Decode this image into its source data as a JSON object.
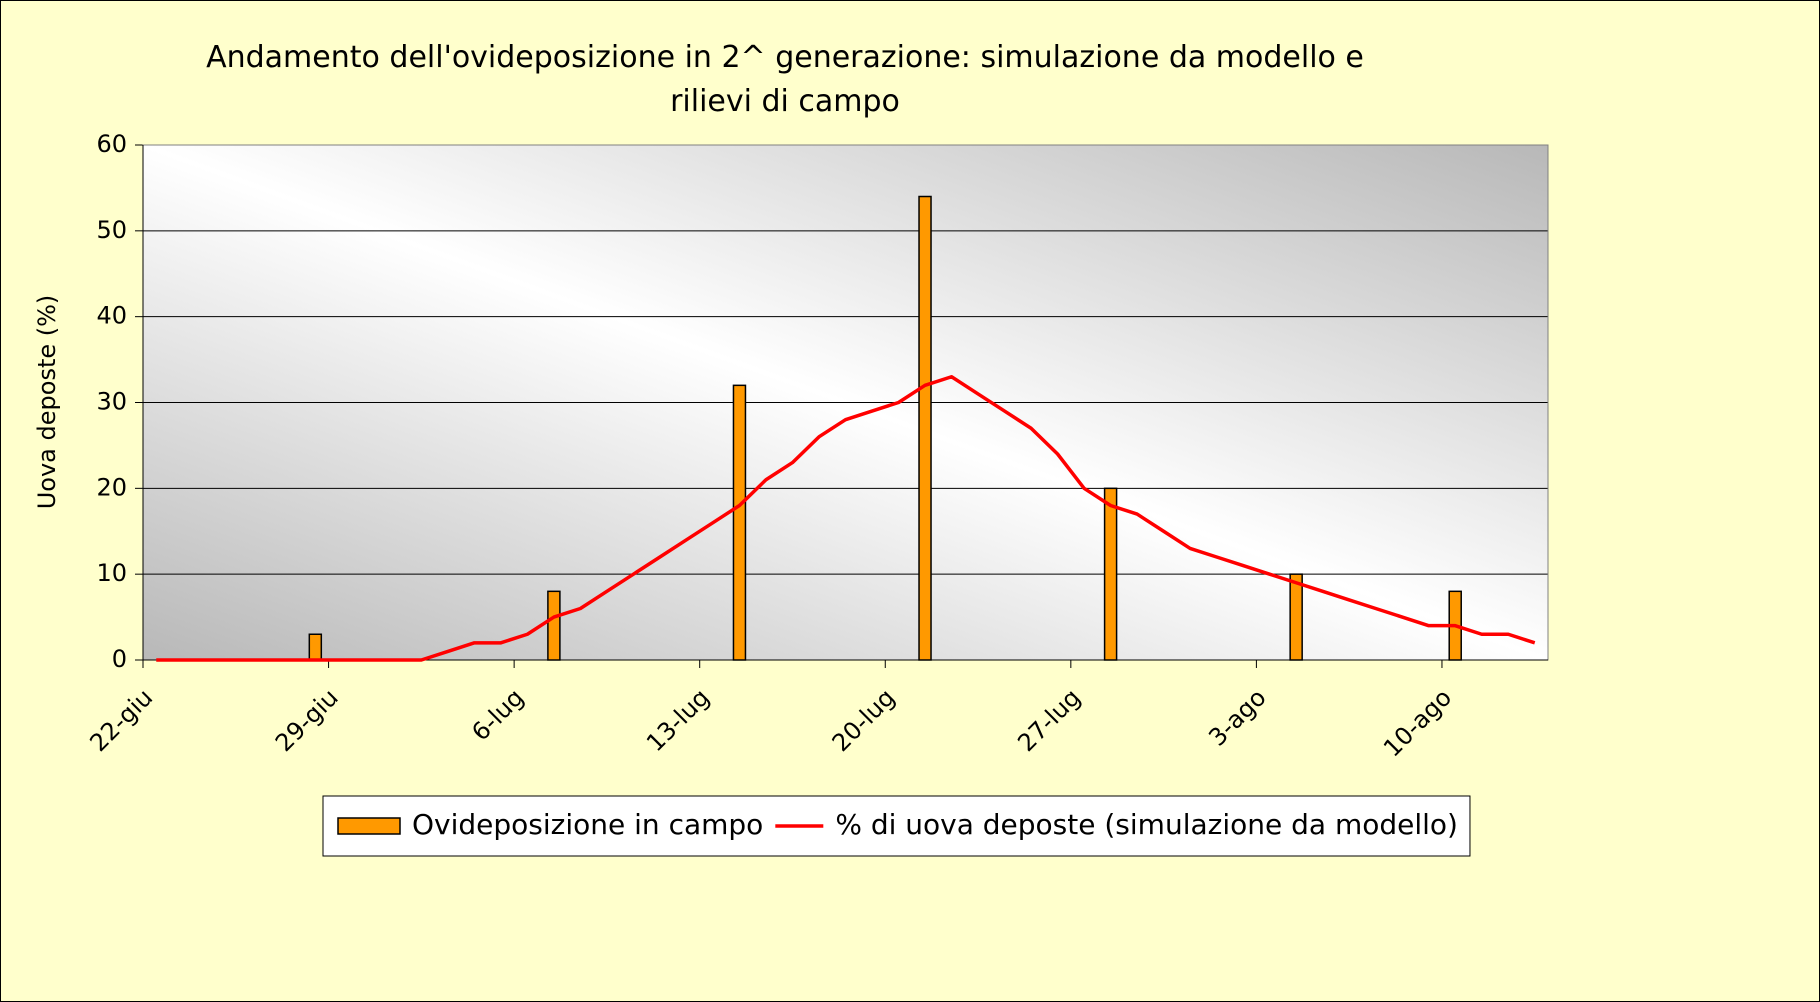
{
  "chart_data": {
    "type": "bar",
    "title": "Andamento dell'ovideposizione in 2^ generazione: simulazione da modello e rilievi di campo",
    "ylabel": "Uova deposte (%)",
    "categories": [
      "22-giu",
      null,
      null,
      null,
      null,
      null,
      null,
      "29-giu",
      null,
      null,
      null,
      null,
      null,
      null,
      "6-lug",
      null,
      null,
      null,
      null,
      null,
      null,
      "13-lug",
      null,
      null,
      null,
      null,
      null,
      null,
      "20-lug",
      null,
      null,
      null,
      null,
      null,
      null,
      "27-lug",
      null,
      null,
      null,
      null,
      null,
      null,
      "3-ago",
      null,
      null,
      null,
      null,
      null,
      null,
      "10-ago",
      null,
      null,
      null
    ],
    "series": [
      {
        "name": "Ovideposizione in campo",
        "type": "bar",
        "color": "#ff9900",
        "values": [
          null,
          null,
          null,
          null,
          null,
          null,
          3,
          null,
          null,
          null,
          null,
          null,
          null,
          null,
          null,
          8,
          null,
          null,
          null,
          null,
          null,
          null,
          32,
          null,
          null,
          null,
          null,
          null,
          null,
          54,
          null,
          null,
          null,
          null,
          null,
          null,
          20,
          null,
          null,
          null,
          null,
          null,
          null,
          10,
          null,
          null,
          null,
          null,
          null,
          8,
          null,
          null,
          null
        ]
      },
      {
        "name": "% di uova deposte (simulazione da modello)",
        "type": "line",
        "color": "#ff0000",
        "values": [
          0,
          0,
          0,
          0,
          0,
          0,
          0,
          0,
          0,
          0,
          0,
          1,
          2,
          2,
          3,
          5,
          6,
          8,
          10,
          12,
          14,
          16,
          18,
          21,
          23,
          26,
          28,
          29,
          30,
          32,
          33,
          31,
          29,
          27,
          24,
          20,
          18,
          17,
          15,
          13,
          12,
          11,
          10,
          9,
          8,
          7,
          6,
          5,
          4,
          4,
          3,
          3,
          2
        ]
      }
    ],
    "ylim": [
      0,
      60
    ],
    "yticks": [
      0,
      10,
      20,
      30,
      40,
      50,
      60
    ],
    "grid": true,
    "legend": "bottom"
  }
}
